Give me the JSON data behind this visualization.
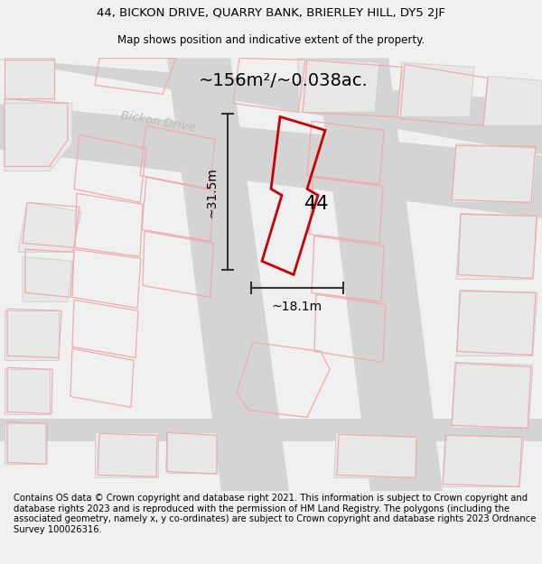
{
  "title_line1": "44, BICKON DRIVE, QUARRY BANK, BRIERLEY HILL, DY5 2JF",
  "title_line2": "Map shows position and indicative extent of the property.",
  "footer": "Contains OS data © Crown copyright and database right 2021. This information is subject to Crown copyright and database rights 2023 and is reproduced with the permission of HM Land Registry. The polygons (including the associated geometry, namely x, y co-ordinates) are subject to Crown copyright and database rights 2023 Ordnance Survey 100026316.",
  "area_label": "~156m²/~0.038ac.",
  "width_label": "~18.1m",
  "height_label": "~31.5m",
  "number_label": "44",
  "bg_color": "#f0f0f0",
  "map_bg": "#f8f8f8",
  "road_color": "#d4d4d4",
  "plot_edge_color": "#cc0000",
  "parcel_color": "#f2aaaa",
  "street_label": "Bickon Drive",
  "street_label_color": "#c0b8b8",
  "dim_color": "#333333",
  "title_fontsize": 9.5,
  "subtitle_fontsize": 8.5,
  "footer_fontsize": 7.2
}
